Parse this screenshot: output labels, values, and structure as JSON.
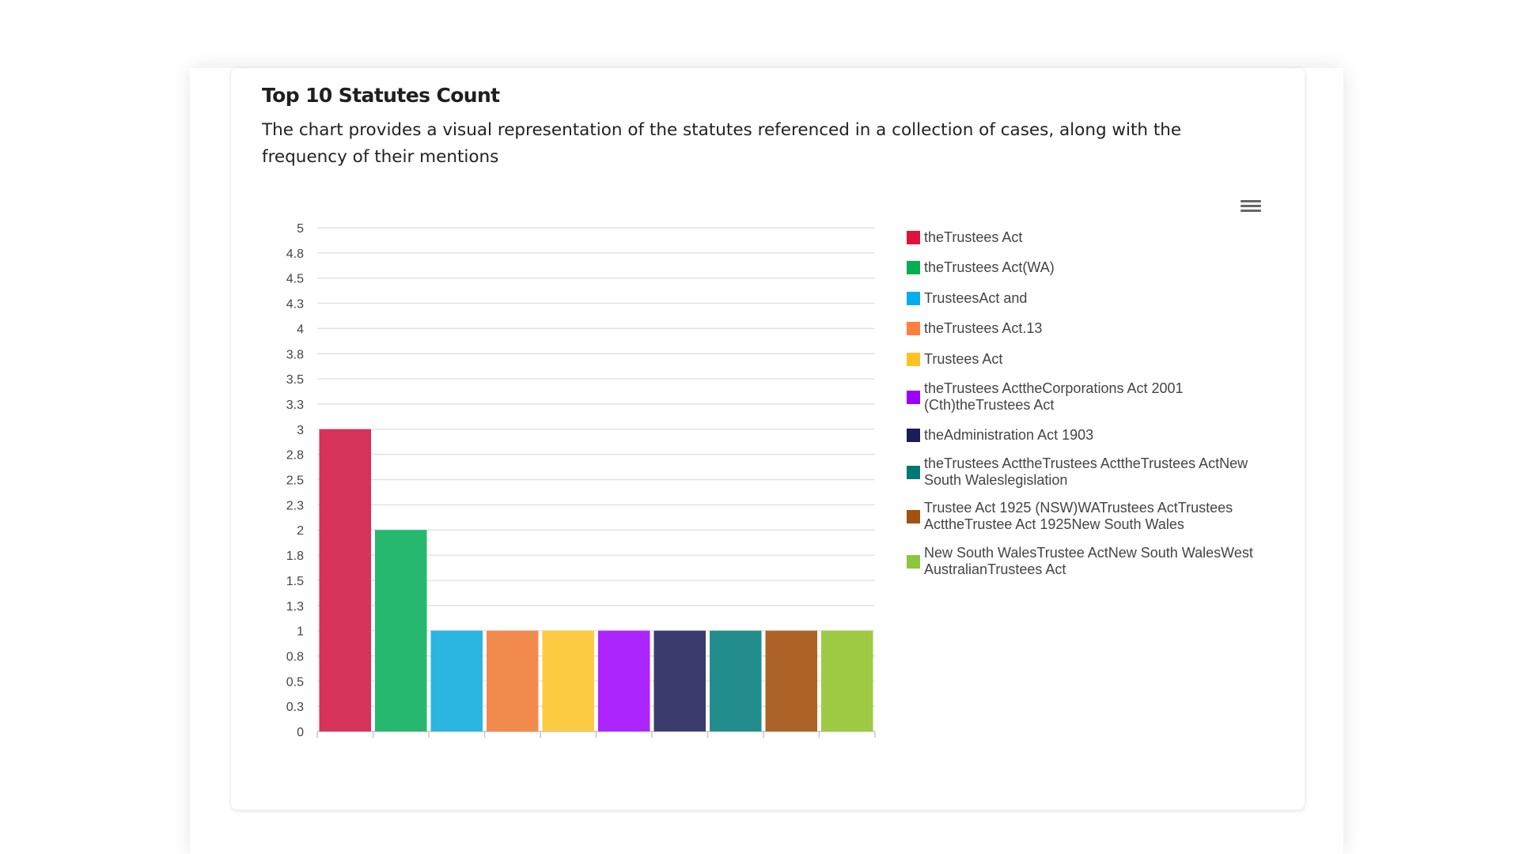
{
  "header": {
    "title": "Top 10 Statutes Count",
    "description": "The chart provides a visual representation of the statutes referenced in a collection of cases, along with the frequency of their mentions"
  },
  "toolbar": {
    "menu_icon": "hamburger-menu-icon"
  },
  "chart_data": {
    "type": "bar",
    "categories": [
      "theTrustees Act",
      "theTrustees Act(WA)",
      "TrusteesAct and",
      "theTrustees Act.13",
      "Trustees Act",
      "theTrustees ActtheCorporations Act 2001 (Cth)theTrustees Act",
      "theAdministration Act 1903",
      "theTrustees ActtheTrustees ActtheTrustees ActNew South Waleslegislation",
      "Trustee Act 1925 (NSW)WATrustees ActTrustees ActtheTrustee Act 1925New South Wales",
      "New South WalesTrustee ActNew South WalesWest AustralianTrustees Act"
    ],
    "values": [
      3,
      2,
      1,
      1,
      1,
      1,
      1,
      1,
      1,
      1
    ],
    "colors": [
      "#d6325a",
      "#26b86f",
      "#2ab6e0",
      "#f38b4f",
      "#fccb41",
      "#ac25ff",
      "#3b3b6e",
      "#238d8d",
      "#ad6327",
      "#9fca44"
    ],
    "legend_colors": [
      "#dc143c",
      "#00b050",
      "#00aeef",
      "#ff7f3f",
      "#ffc220",
      "#9b00ff",
      "#1c1c5a",
      "#007878",
      "#a0520e",
      "#8cc63f"
    ],
    "y_ticks": [
      "0",
      "0.3",
      "0.5",
      "0.8",
      "1",
      "1.3",
      "1.5",
      "1.8",
      "2",
      "2.3",
      "2.5",
      "2.8",
      "3",
      "3.3",
      "3.5",
      "3.8",
      "4",
      "4.3",
      "4.5",
      "4.8",
      "5"
    ],
    "ylim": [
      0,
      5
    ],
    "grid": true,
    "legend_position": "right"
  }
}
